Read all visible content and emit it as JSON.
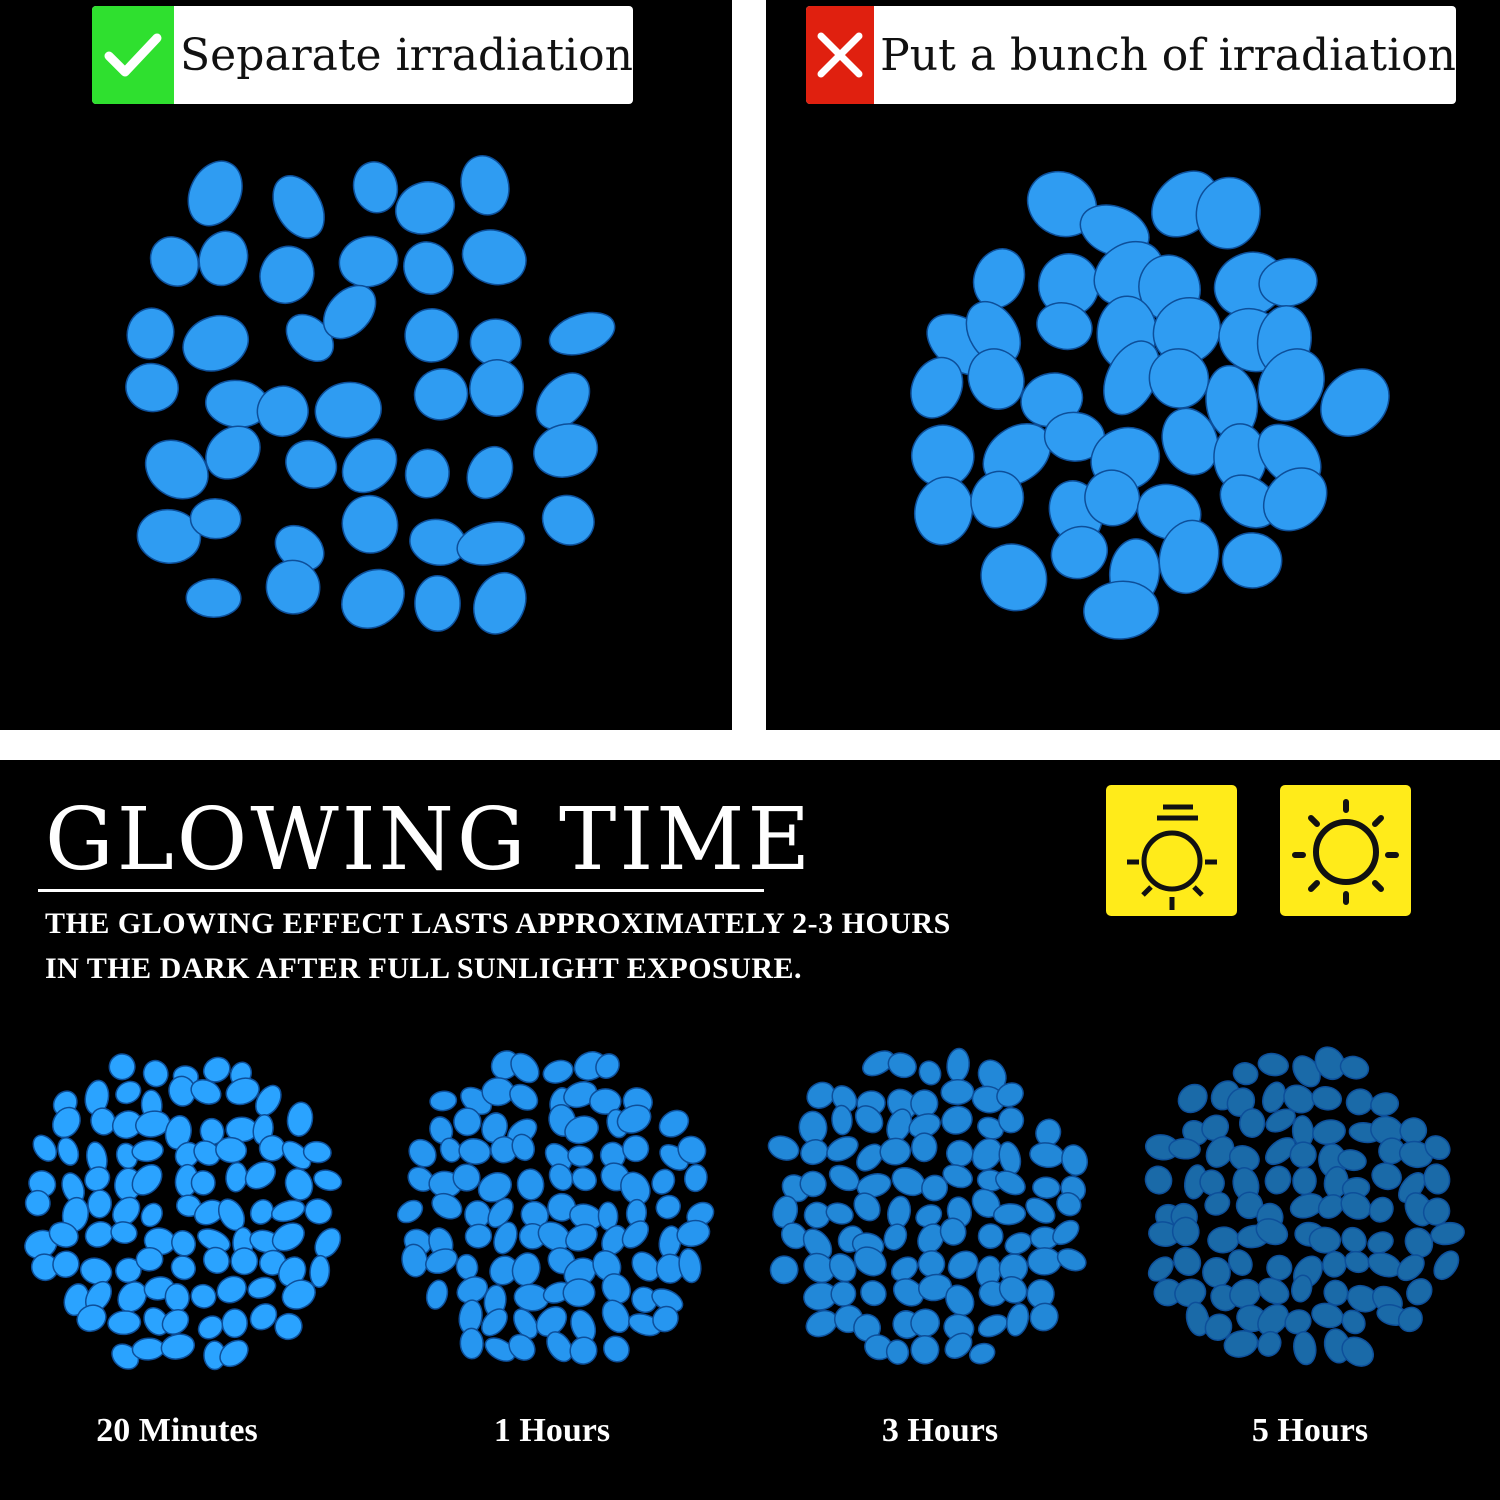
{
  "top": {
    "left": {
      "label": "Separate irradiation",
      "mark_icon": "check-icon",
      "mark_color": "#2fe02f"
    },
    "right": {
      "label": "Put a bunch of irradiation",
      "mark_icon": "cross-icon",
      "mark_color": "#e0200f"
    }
  },
  "glowing": {
    "title": "GLOWING TIME",
    "line1": "THE GLOWING EFFECT LASTS APPROXIMATELY 2-3 HOURS",
    "line2": "IN THE DARK AFTER FULL SUNLIGHT EXPOSURE.",
    "icons": [
      "light-lamp-icon",
      "sun-icon"
    ],
    "icon_color": "#ffeb1a"
  },
  "stages": [
    {
      "label": "20 Minutes",
      "color": "#2aa3ff"
    },
    {
      "label": "1 Hours",
      "color": "#2696f0"
    },
    {
      "label": "3 Hours",
      "color": "#2288d8"
    },
    {
      "label": "5 Hours",
      "color": "#1a6aa8"
    }
  ],
  "pebble_color": "#2f9cf2"
}
